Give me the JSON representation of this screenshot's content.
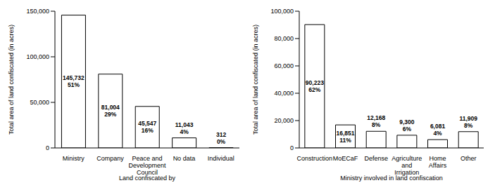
{
  "chart_data": [
    {
      "type": "bar",
      "x_label": "Land confiscated by",
      "y_label": "Total area of land confiscated (in acres)",
      "categories": [
        "Ministry",
        "Company",
        "Peace and Development Council",
        "No data",
        "Individual"
      ],
      "values": [
        145732,
        81004,
        45547,
        11043,
        312
      ],
      "value_labels": [
        "145,732",
        "81,004",
        "45,547",
        "11,043",
        "312"
      ],
      "percent_labels": [
        "51%",
        "29%",
        "16%",
        "4%",
        "0%"
      ],
      "color": "#ffffff",
      "data_labels": true,
      "grid": false,
      "ylim": [
        0,
        150000
      ],
      "yticks": [
        0,
        {
          "value": 50000,
          "label": "50,000"
        },
        {
          "value": 100000,
          "label": "100,000"
        },
        {
          "value": 150000,
          "label": "150,000"
        }
      ]
    },
    {
      "type": "bar",
      "x_label": "Ministry involved in land confiscation",
      "y_label": "Total area of land confiscated (in acres)",
      "categories": [
        "Construction",
        "MoECaF",
        "Defense",
        "Agriculture and Irrigation",
        "Home Affairs",
        "Other"
      ],
      "values": [
        90223,
        16851,
        12168,
        9300,
        6081,
        11909
      ],
      "value_labels": [
        "90,223",
        "16,851",
        "12,168",
        "9,300",
        "6,081",
        "11,909"
      ],
      "percent_labels": [
        "62%",
        "11%",
        "8%",
        "6%",
        "4%",
        "8%"
      ],
      "color": "#ffffff",
      "data_labels": true,
      "grid": false,
      "ylim": [
        0,
        100000
      ],
      "yticks": [
        0,
        {
          "value": 20000,
          "label": "20,000"
        },
        {
          "value": 40000,
          "label": "40,000"
        },
        {
          "value": 60000,
          "label": "60,000"
        },
        {
          "value": 80000,
          "label": "80,000"
        },
        {
          "value": 100000,
          "label": "100,000"
        }
      ]
    }
  ]
}
